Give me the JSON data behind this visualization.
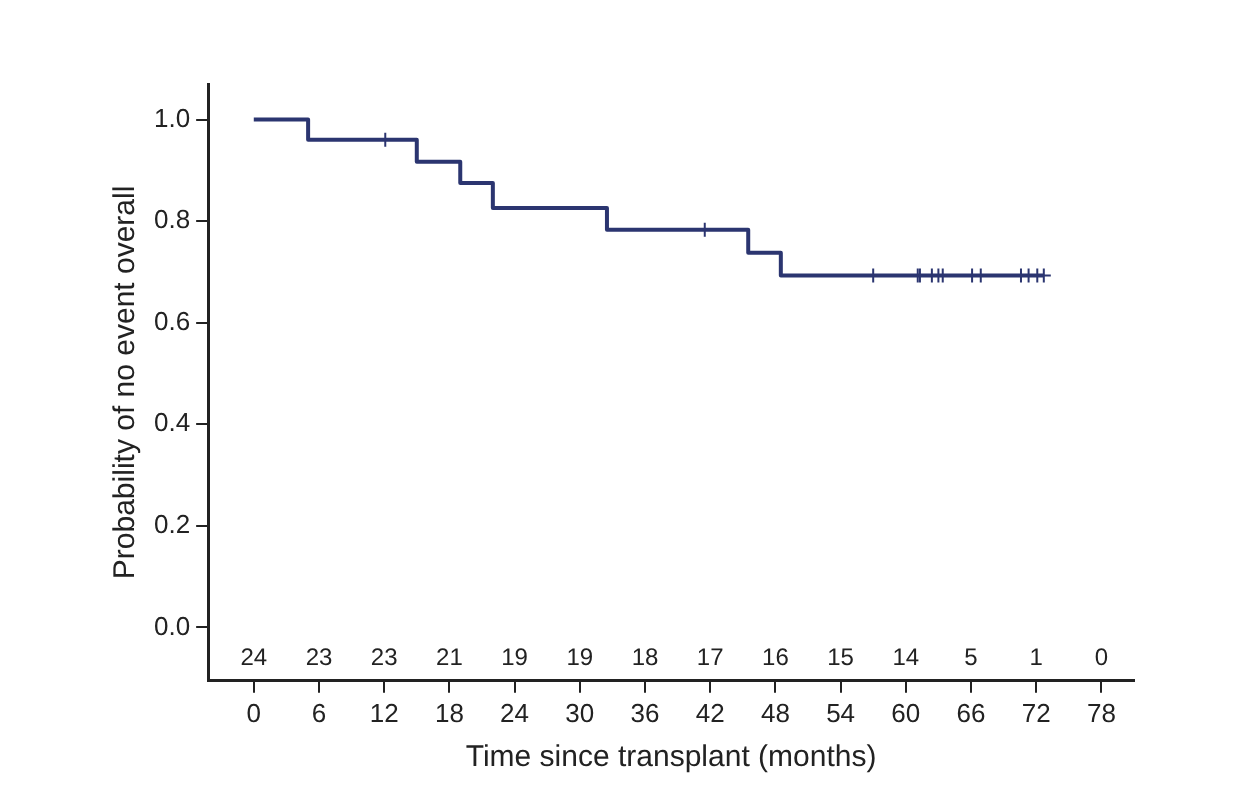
{
  "chart_data": {
    "type": "step",
    "xlabel": "Time since transplant (months)",
    "ylabel": "Probability of no event overall",
    "xlim": [
      -4.2,
      81
    ],
    "xticks": [
      0,
      6,
      12,
      18,
      24,
      30,
      36,
      42,
      48,
      54,
      60,
      66,
      72,
      78
    ],
    "ylim": [
      -0.105,
      1.07
    ],
    "yticks": [
      {
        "value": 0,
        "label": "0.0"
      },
      0.2,
      0.4,
      0.6,
      0.8,
      {
        "value": 1,
        "label": "1.0"
      }
    ],
    "grid": false,
    "legend": false,
    "line_style": "solid",
    "series": [
      {
        "color": "#2b3570",
        "x": [
          0,
          5,
          15,
          19,
          22,
          32.5,
          45.5,
          48.5,
          72.7
        ],
        "values": [
          1,
          0.96,
          0.917,
          0.875,
          0.826,
          0.783,
          0.738,
          0.693,
          0.693
        ]
      },
      {
        "type": "scatter",
        "marker": "cross",
        "color": "#2b3570",
        "x": [
          12.1,
          41.5,
          57,
          61.1,
          61.3,
          62.4,
          63,
          63.4,
          66.1,
          66.9,
          70.6,
          71.3,
          72.1,
          72.7
        ],
        "values": [
          0.96,
          0.783,
          0.693,
          0.693,
          0.693,
          0.693,
          0.693,
          0.693,
          0.693,
          0.693,
          0.693,
          0.693,
          0.693,
          0.693
        ]
      }
    ],
    "annotations": [
      "24",
      "23",
      "23",
      "21",
      "19",
      "19",
      "18",
      "17",
      "16",
      "15",
      "14",
      "5",
      "1",
      "0"
    ]
  }
}
